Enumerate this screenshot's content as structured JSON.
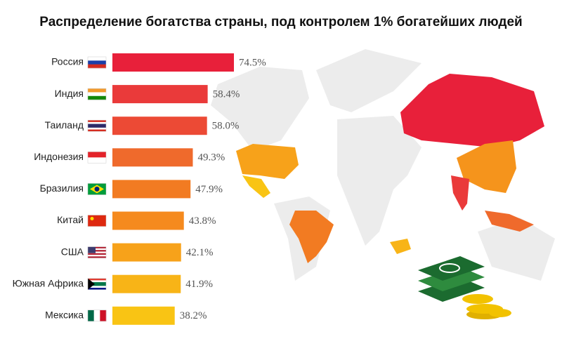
{
  "chart_data": {
    "type": "bar",
    "orientation": "horizontal",
    "title": "Распределение богатства страны, под контролем 1% богатейших людей",
    "categories": [
      "Россия",
      "Индия",
      "Таиланд",
      "Индонезия",
      "Бразилия",
      "Китай",
      "США",
      "Южная Африка",
      "Мексика"
    ],
    "values": [
      74.5,
      58.4,
      58.0,
      49.3,
      47.9,
      43.8,
      42.1,
      41.9,
      38.2
    ],
    "value_labels": [
      "74.5%",
      "58.4%",
      "58.0%",
      "49.3%",
      "47.9%",
      "43.8%",
      "42.1%",
      "41.9%",
      "38.2%"
    ],
    "colors": [
      "#e8203a",
      "#ea3a3a",
      "#ec4a35",
      "#ef6a2c",
      "#f27b22",
      "#f58a1e",
      "#f7a21a",
      "#f8b417",
      "#f9c414"
    ]
  }
}
